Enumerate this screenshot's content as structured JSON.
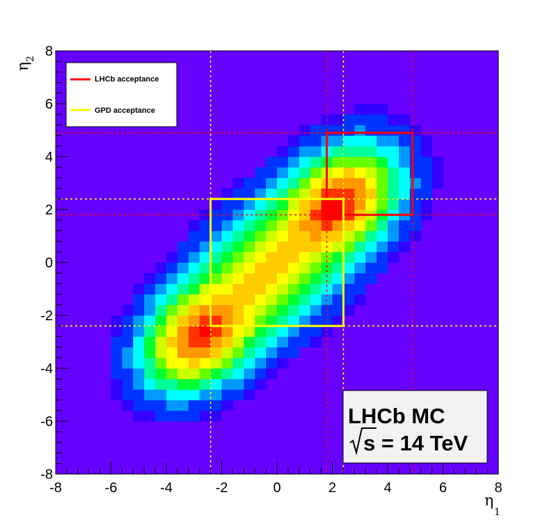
{
  "chart_data": {
    "type": "heatmap",
    "title": "",
    "xlabel": "η",
    "xlabel_sub": "1",
    "ylabel": "η",
    "ylabel_sub": "2",
    "xlim": [
      -8,
      8
    ],
    "ylim": [
      -8,
      8
    ],
    "xticks": [
      -8,
      -6,
      -4,
      -2,
      0,
      2,
      4,
      6,
      8
    ],
    "yticks": [
      -8,
      -6,
      -4,
      -2,
      0,
      2,
      4,
      6,
      8
    ],
    "xtick_labels": [
      "-8",
      "-6",
      "-4",
      "-2",
      "0",
      "2",
      "4",
      "6",
      "8"
    ],
    "ytick_labels": [
      "-8",
      "-6",
      "-4",
      "-2",
      "0",
      "2",
      "4",
      "6",
      "8"
    ],
    "bin_width": 0.4,
    "background_color": "#6600ff",
    "peaks": [
      {
        "x": -2.8,
        "y": -2.8,
        "level": 1.0
      },
      {
        "x": 2.3,
        "y": 2.3,
        "level": 1.0
      },
      {
        "x": -0.3,
        "y": -0.3,
        "level": 0.55
      }
    ],
    "lines": [
      {
        "series": "LHCb acceptance",
        "orientation": "vertical",
        "value": 1.8,
        "color": "#ff0000",
        "style": "dotted"
      },
      {
        "series": "LHCb acceptance",
        "orientation": "vertical",
        "value": 4.9,
        "color": "#ff0000",
        "style": "dotted"
      },
      {
        "series": "LHCb acceptance",
        "orientation": "horizontal",
        "value": 1.8,
        "color": "#ff0000",
        "style": "dotted"
      },
      {
        "series": "LHCb acceptance",
        "orientation": "horizontal",
        "value": 4.9,
        "color": "#ff0000",
        "style": "dotted"
      },
      {
        "series": "GPD acceptance",
        "orientation": "vertical",
        "value": -2.4,
        "color": "#ffff00",
        "style": "dotted"
      },
      {
        "series": "GPD acceptance",
        "orientation": "vertical",
        "value": 2.4,
        "color": "#ffff00",
        "style": "dotted"
      },
      {
        "series": "GPD acceptance",
        "orientation": "horizontal",
        "value": -2.4,
        "color": "#ffff00",
        "style": "dotted"
      },
      {
        "series": "GPD acceptance",
        "orientation": "horizontal",
        "value": 2.4,
        "color": "#ffff00",
        "style": "dotted"
      }
    ],
    "boxes": [
      {
        "series": "LHCb acceptance",
        "x": [
          1.8,
          4.9
        ],
        "y": [
          1.8,
          4.9
        ],
        "color": "#ff0000"
      },
      {
        "series": "GPD acceptance",
        "x": [
          -2.4,
          2.4
        ],
        "y": [
          -2.4,
          2.4
        ],
        "color": "#ffff00"
      }
    ],
    "legend": {
      "placement": "top-left",
      "entries": [
        {
          "label": "LHCb acceptance",
          "color": "#ff0000"
        },
        {
          "label": "GPD acceptance",
          "color": "#ffff00"
        }
      ]
    },
    "annotation": {
      "line1": "LHCb MC",
      "line2": "s = 14 TeV",
      "placement": "bottom-right"
    }
  }
}
